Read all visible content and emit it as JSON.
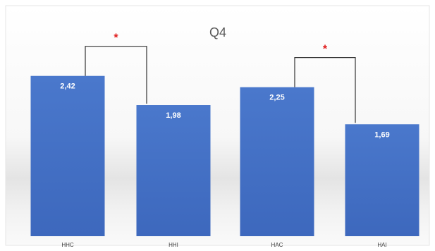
{
  "chart_data": {
    "type": "bar",
    "title": "Q4",
    "categories": [
      "HHC",
      "HHI",
      "HAC",
      "HAI"
    ],
    "values": [
      2.42,
      1.98,
      2.25,
      1.69
    ],
    "value_labels": [
      "2,42",
      "1,98",
      "2,25",
      "1,69"
    ],
    "ylim": [
      0,
      2.8
    ],
    "grid": false,
    "legend": "none",
    "significance": [
      {
        "between": [
          "HHC",
          "HHI"
        ],
        "marker": "*"
      },
      {
        "between": [
          "HAC",
          "HAI"
        ],
        "marker": "*"
      }
    ],
    "colors": {
      "bar_top": "#4a78cc",
      "bar_bottom": "#3d68bd",
      "marker": "#e01b1b",
      "bracket": "#333333",
      "title": "#595959",
      "label": "#404040"
    }
  }
}
